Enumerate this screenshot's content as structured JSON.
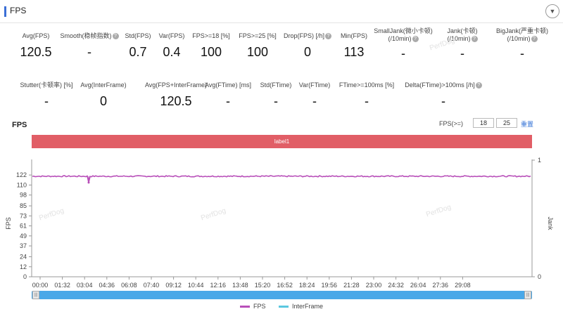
{
  "header": {
    "title": "FPS",
    "collapse_icon": "chevron-down-icon"
  },
  "stats_row1": [
    {
      "label": "Avg(FPS)",
      "value": "120.5",
      "help": false
    },
    {
      "label": "Smooth(稳帧指数)",
      "value": "-",
      "help": true
    },
    {
      "label": "Std(FPS)",
      "value": "0.7",
      "help": false
    },
    {
      "label": "Var(FPS)",
      "value": "0.4",
      "help": false
    },
    {
      "label": "FPS>=18 [%]",
      "value": "100",
      "help": false
    },
    {
      "label": "FPS>=25 [%]",
      "value": "100",
      "help": false
    },
    {
      "label": "Drop(FPS) [/h]",
      "value": "0",
      "help": true
    },
    {
      "label": "Min(FPS)",
      "value": "113",
      "help": false
    },
    {
      "label": "SmallJank(微小卡顿)",
      "label2": "(/10min)",
      "value": "-",
      "help": true
    },
    {
      "label": "Jank(卡顿)",
      "label2": "(/10min)",
      "value": "-",
      "help": true
    },
    {
      "label": "BigJank(严重卡顿)",
      "label2": "(/10min)",
      "value": "-",
      "help": true
    }
  ],
  "stats_row2": [
    {
      "label": "Stutter(卡顿率) [%]",
      "value": "-",
      "help": false
    },
    {
      "label": "Avg(InterFrame)",
      "value": "0",
      "help": false
    },
    {
      "label": "Avg(FPS+InterFrame)",
      "value": "120.5",
      "help": false
    },
    {
      "label": "Avg(FTime) [ms]",
      "value": "-",
      "help": false
    },
    {
      "label": "Std(FTime)",
      "value": "-",
      "help": false
    },
    {
      "label": "Var(FTime)",
      "value": "-",
      "help": false
    },
    {
      "label": "FTime>=100ms [%]",
      "value": "-",
      "help": false
    },
    {
      "label": "Delta(FTime)>100ms [/h]",
      "value": "-",
      "help": true
    }
  ],
  "chart_controls": {
    "title": "FPS",
    "threshold_label": "FPS(>=)",
    "threshold_1": "18",
    "threshold_2": "25",
    "reset_label": "重置"
  },
  "label_band": "label1",
  "watermark": "PerfDog",
  "colors": {
    "fps": "#b84fb9",
    "interframe": "#5bc8e0",
    "band": "#e15e66",
    "scrollbar": "#4aa8e8",
    "accent": "#3b6fd6"
  },
  "chart_data": {
    "type": "line",
    "y_ticks": [
      0,
      12,
      24,
      37,
      49,
      61,
      73,
      85,
      98,
      110,
      122
    ],
    "ylim": [
      0,
      128
    ],
    "ylabel": "FPS",
    "y2label": "Jank",
    "y2_ticks": [
      0,
      1
    ],
    "x_ticks": [
      "00:00",
      "01:32",
      "03:04",
      "04:36",
      "06:08",
      "07:40",
      "09:12",
      "10:44",
      "12:16",
      "13:48",
      "15:20",
      "16:52",
      "18:24",
      "19:56",
      "21:28",
      "23:00",
      "24:32",
      "26:04",
      "27:36",
      "29:08"
    ],
    "series": [
      {
        "name": "FPS",
        "value": 120.5,
        "min": 113,
        "min_at": "03:30"
      },
      {
        "name": "InterFrame",
        "value": 0
      }
    ]
  },
  "legend": [
    {
      "name": "FPS",
      "color": "#b84fb9"
    },
    {
      "name": "InterFrame",
      "color": "#5bc8e0"
    }
  ]
}
